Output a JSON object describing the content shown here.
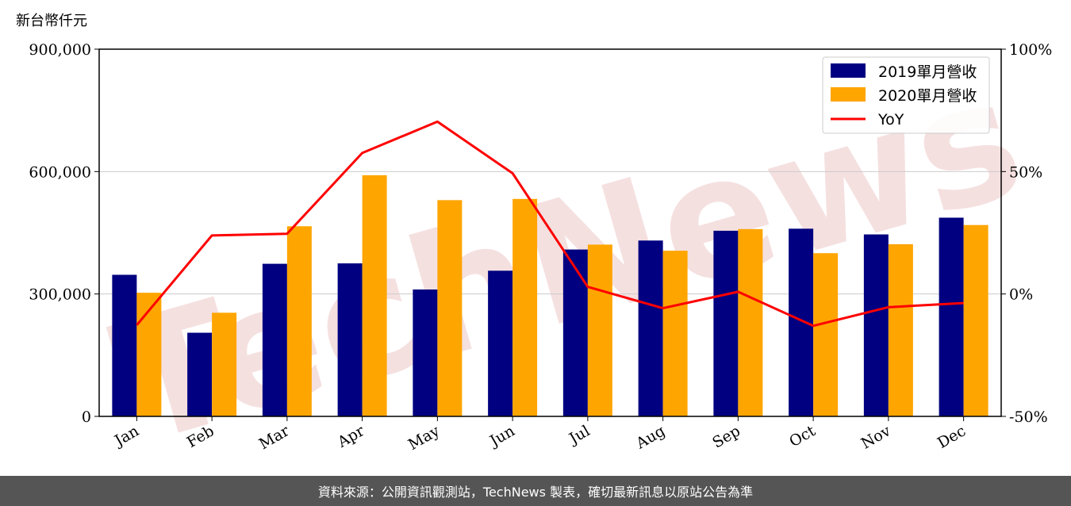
{
  "unit_label": "新台幣仟元",
  "footer_text": "資料來源：公開資訊觀測站，TechNews 製表，確切最新訊息以原站公告為準",
  "watermark": "TechNews",
  "colors": {
    "series2019": "#000080",
    "series2020": "#FFA500",
    "yoy": "#FF0000",
    "watermark": "#f2d6d6"
  },
  "chart_data": {
    "type": "bar",
    "categories": [
      "Jan",
      "Feb",
      "Mar",
      "Apr",
      "May",
      "Jun",
      "Jul",
      "Aug",
      "Sep",
      "Oct",
      "Nov",
      "Dec"
    ],
    "series": [
      {
        "name": "2019單月營收",
        "type": "bar",
        "axis": "left",
        "values": [
          347000,
          205000,
          374000,
          375000,
          311000,
          357000,
          409000,
          431000,
          455000,
          460000,
          446000,
          487000
        ]
      },
      {
        "name": "2020單月營收",
        "type": "bar",
        "axis": "left",
        "values": [
          303000,
          254000,
          466000,
          591000,
          530000,
          533000,
          421000,
          406000,
          459000,
          400000,
          422000,
          469000
        ]
      },
      {
        "name": "YoY",
        "type": "line",
        "axis": "right",
        "values": [
          -12.7,
          23.9,
          24.6,
          57.6,
          70.4,
          49.3,
          2.9,
          -5.8,
          0.9,
          -13.0,
          -5.4,
          -3.7
        ]
      }
    ],
    "ylim_left": [
      0,
      900000
    ],
    "yticks_left": [
      "0",
      "300,000",
      "600,000",
      "900,000"
    ],
    "ylim_right": [
      -50,
      100
    ],
    "yticks_right": [
      "-50%",
      "0%",
      "50%",
      "100%"
    ],
    "grid": "horizontal",
    "legend_position": "top-right"
  }
}
